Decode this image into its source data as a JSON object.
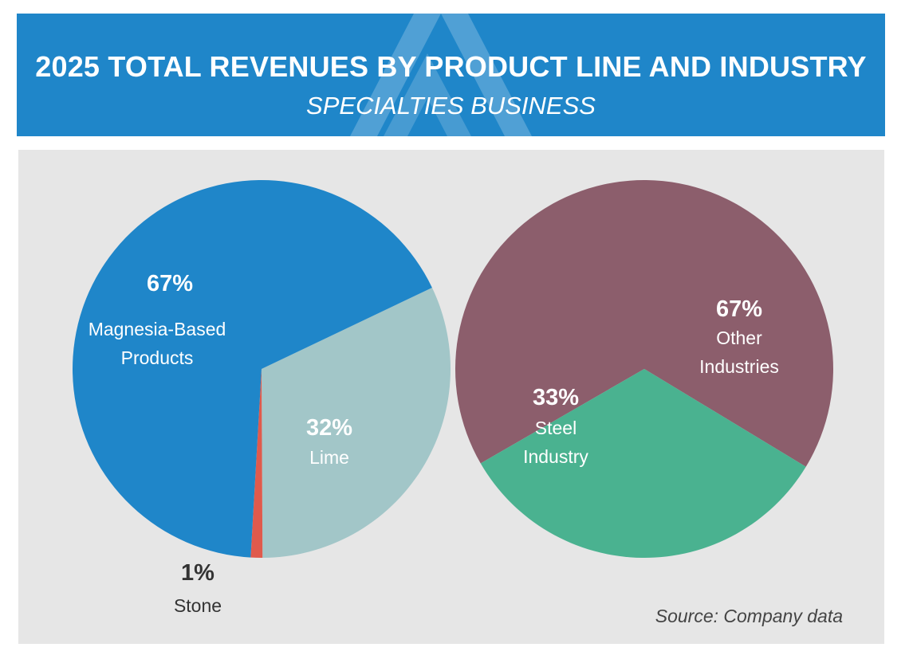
{
  "header": {
    "title": "2025 TOTAL REVENUES BY PRODUCT LINE AND INDUSTRY",
    "subtitle": "SPECIALTIES BUSINESS",
    "background_color": "#1f86c9"
  },
  "panel": {
    "background_color": "#e6e6e6"
  },
  "source": "Source: Company data",
  "chart_data": [
    {
      "type": "pie",
      "title": "",
      "slices": [
        {
          "label_lines": [
            "Magnesia-Based",
            "Products"
          ],
          "percent_label": "67%",
          "value": 67,
          "color": "#1f86c9"
        },
        {
          "label_lines": [
            "Lime"
          ],
          "percent_label": "32%",
          "value": 32,
          "color": "#a2c6c8"
        },
        {
          "label_lines": [
            "Stone"
          ],
          "percent_label": "1%",
          "value": 1,
          "color": "#e05a4c"
        }
      ]
    },
    {
      "type": "pie",
      "title": "",
      "slices": [
        {
          "label_lines": [
            "Other",
            "Industries"
          ],
          "percent_label": "67%",
          "value": 67,
          "color": "#8c5e6c"
        },
        {
          "label_lines": [
            "Steel",
            "Industry"
          ],
          "percent_label": "33%",
          "value": 33,
          "color": "#4ab290"
        }
      ]
    }
  ]
}
